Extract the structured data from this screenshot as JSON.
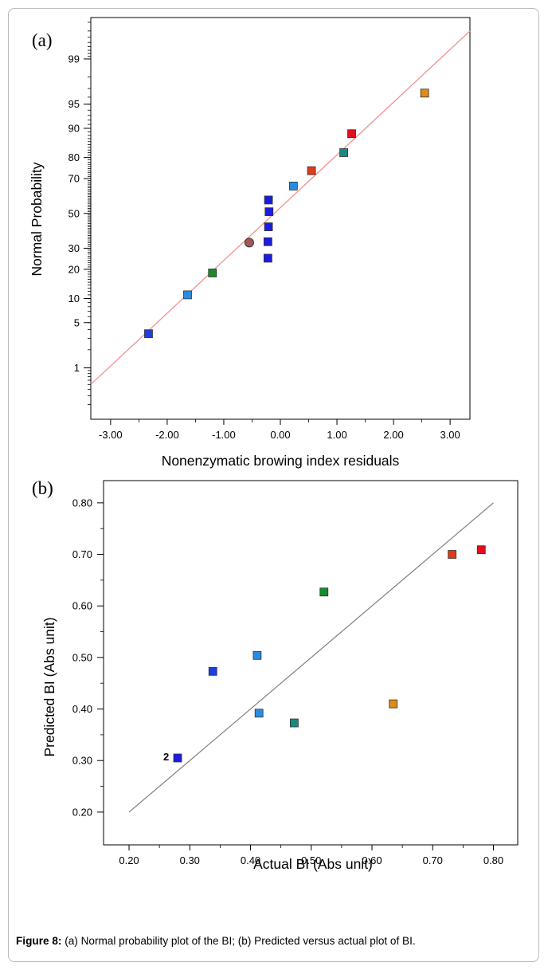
{
  "caption": {
    "label": "Figure 8:",
    "text": "(a) Normal probability plot of the BI; (b) Predicted versus actual plot of BI."
  },
  "colors": {
    "fit_line_a": "#f0928f",
    "fit_line_b": "#808080",
    "axis": "#000000"
  },
  "chart_data": [
    {
      "type": "scatter",
      "panel_label": "(a)",
      "title": "",
      "xlabel": "Nonenzymatic browing index residuals",
      "ylabel": "Normal Probability",
      "xlim": [
        -3.35,
        3.35
      ],
      "x_ticks": [
        "-3.00",
        "-2.00",
        "-1.00",
        "0.00",
        "1.00",
        "2.00",
        "3.00"
      ],
      "x_tick_values": [
        -3,
        -2,
        -1,
        0,
        1,
        2,
        3
      ],
      "y_scale": "normal-probability",
      "y_ticks": [
        "1",
        "5",
        "10",
        "20",
        "30",
        "50",
        "70",
        "80",
        "90",
        "95",
        "99"
      ],
      "y_tick_values": [
        1,
        5,
        10,
        20,
        30,
        50,
        70,
        80,
        90,
        95,
        99
      ],
      "fit_line": {
        "from": [
          -3.35,
          0.5
        ],
        "to": [
          3.35,
          99.7
        ]
      },
      "points": [
        {
          "x": -2.33,
          "y": 3.5,
          "color": "#1f3fd8",
          "marker": "square"
        },
        {
          "x": -1.64,
          "y": 11,
          "color": "#2a8be0",
          "marker": "square"
        },
        {
          "x": -1.2,
          "y": 18.5,
          "color": "#1a8a2a",
          "marker": "square"
        },
        {
          "x": -0.55,
          "y": 33,
          "color": "#a05a5a",
          "marker": "circle"
        },
        {
          "x": -0.22,
          "y": 25,
          "color": "#1c1ce0",
          "marker": "square"
        },
        {
          "x": -0.22,
          "y": 33.5,
          "color": "#1c1ce0",
          "marker": "square"
        },
        {
          "x": -0.21,
          "y": 42,
          "color": "#1c1ce0",
          "marker": "square"
        },
        {
          "x": -0.2,
          "y": 51,
          "color": "#1c1ce0",
          "marker": "square"
        },
        {
          "x": -0.21,
          "y": 58,
          "color": "#1c1ce0",
          "marker": "square"
        },
        {
          "x": 0.23,
          "y": 66,
          "color": "#2a8be0",
          "marker": "square"
        },
        {
          "x": 0.55,
          "y": 74,
          "color": "#e23a18",
          "marker": "square"
        },
        {
          "x": 1.12,
          "y": 82,
          "color": "#1a8a80",
          "marker": "square"
        },
        {
          "x": 1.26,
          "y": 88.5,
          "color": "#e00f1f",
          "marker": "square"
        },
        {
          "x": 2.55,
          "y": 96.5,
          "color": "#e08a18",
          "marker": "square"
        }
      ]
    },
    {
      "type": "scatter",
      "panel_label": "(b)",
      "title": "",
      "xlabel": "Actual BI (Abs unit)",
      "ylabel": "Predicted BI (Abs unit)",
      "xlim": [
        0.158,
        0.84
      ],
      "ylim": [
        0.155,
        0.84
      ],
      "x_ticks": [
        "0.20",
        "0.30",
        "0.40",
        "0.50",
        "0.60",
        "0.70",
        "0.80"
      ],
      "x_tick_values": [
        0.2,
        0.3,
        0.4,
        0.5,
        0.6,
        0.7,
        0.8
      ],
      "y_ticks": [
        "0.20",
        "0.30",
        "0.40",
        "0.50",
        "0.60",
        "0.70",
        "0.80"
      ],
      "y_tick_values": [
        0.2,
        0.3,
        0.4,
        0.5,
        0.6,
        0.7,
        0.8
      ],
      "fit_line": {
        "from": [
          0.2,
          0.2
        ],
        "to": [
          0.8,
          0.8
        ]
      },
      "annotations": [
        {
          "text": "2",
          "x": 0.28,
          "y": 0.305
        }
      ],
      "points": [
        {
          "x": 0.28,
          "y": 0.305,
          "color": "#1c1ce0",
          "marker": "square"
        },
        {
          "x": 0.338,
          "y": 0.473,
          "color": "#1f3fd8",
          "marker": "square"
        },
        {
          "x": 0.411,
          "y": 0.504,
          "color": "#2a8be0",
          "marker": "square"
        },
        {
          "x": 0.414,
          "y": 0.392,
          "color": "#2a8be0",
          "marker": "square"
        },
        {
          "x": 0.472,
          "y": 0.373,
          "color": "#1a8a80",
          "marker": "square"
        },
        {
          "x": 0.521,
          "y": 0.627,
          "color": "#1a8a2a",
          "marker": "square"
        },
        {
          "x": 0.635,
          "y": 0.41,
          "color": "#e08a18",
          "marker": "square"
        },
        {
          "x": 0.732,
          "y": 0.7,
          "color": "#e23a18",
          "marker": "square"
        },
        {
          "x": 0.78,
          "y": 0.709,
          "color": "#e00f1f",
          "marker": "square"
        }
      ]
    }
  ]
}
